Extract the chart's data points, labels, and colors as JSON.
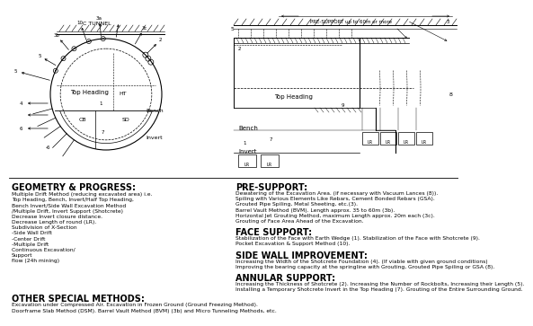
{
  "bg_color": "#ffffff",
  "geometry_title": "GEOMETRY & PROGRESS:",
  "geometry_text": [
    "Multiple Drift Method (reducing excavated area) i.e.",
    "Top Heading, Bench, Invert/Half Top Heading,",
    "Bench Invert/Side Wall Excavation Method",
    "/Multiple Drift, Invert Support (Shotcrete)",
    "Decrease Invert closure distance.",
    "Decrease Length of round (LR).",
    "Subdivision of X-Section",
    "-Side Wall Drift",
    "-Center Drift",
    "-Multiple Drift",
    "Continuous Excavation/",
    "Support",
    "flow (24h mining)"
  ],
  "presupport_title": "PRE-SUPPORT:",
  "presupport_text": [
    "Dewatering of the Excavation Area. (if necessary with Vacuum Lances (8)).",
    "Spiling with Various Elements Like Rebars, Cement Bonded Rebars (GSA).",
    "Grouted Pipe Spiling, Metal Sheeting, etc.(3).",
    "Barrel Vault Method (BVM). Length approx. 35 to 60m (3b).",
    "Horizontal Jet Grouting Method, maximum Length approx. 20m each (3c).",
    "Grouting of Face Area Ahead of the Excavation."
  ],
  "facesupport_title": "FACE SUPPORT:",
  "facesupport_text": [
    "Stabilization of the Face with Earth Wedge (1). Stabilization of the Face with Shotcrete (9).",
    "Pocket Excavation & Support Method (10)."
  ],
  "sidewall_title": "SIDE WALL IMPROVEMENT:",
  "sidewall_text": [
    "Increasing the Width of the Shotcrete Foundation (4). (If viable with given ground conditions)",
    "Improving the bearing capacity at the springline with Grouting, Grouted Pipe Spiling or GSA (8)."
  ],
  "annular_title": "ANNULAR SUPPORT:",
  "annular_text": [
    "Increasing the Thickness of Shotcrete (2). Increasing the Number of Rockbolts, Increasing their Length (5).",
    "Installing a Temporary Shotcrete Invert in the Top Heading (7). Grouting of the Entire Surrounding Ground."
  ],
  "other_title": "OTHER SPECIAL METHODS:",
  "other_text": [
    "Excavation under Compressed Air. Excavation in Frozen Ground (Ground Freezing Method).",
    "Doorframe Slab Method (DSM). Barrel Vault Method (BVM) (3b) and Micro Tunneling Methods, etc."
  ]
}
